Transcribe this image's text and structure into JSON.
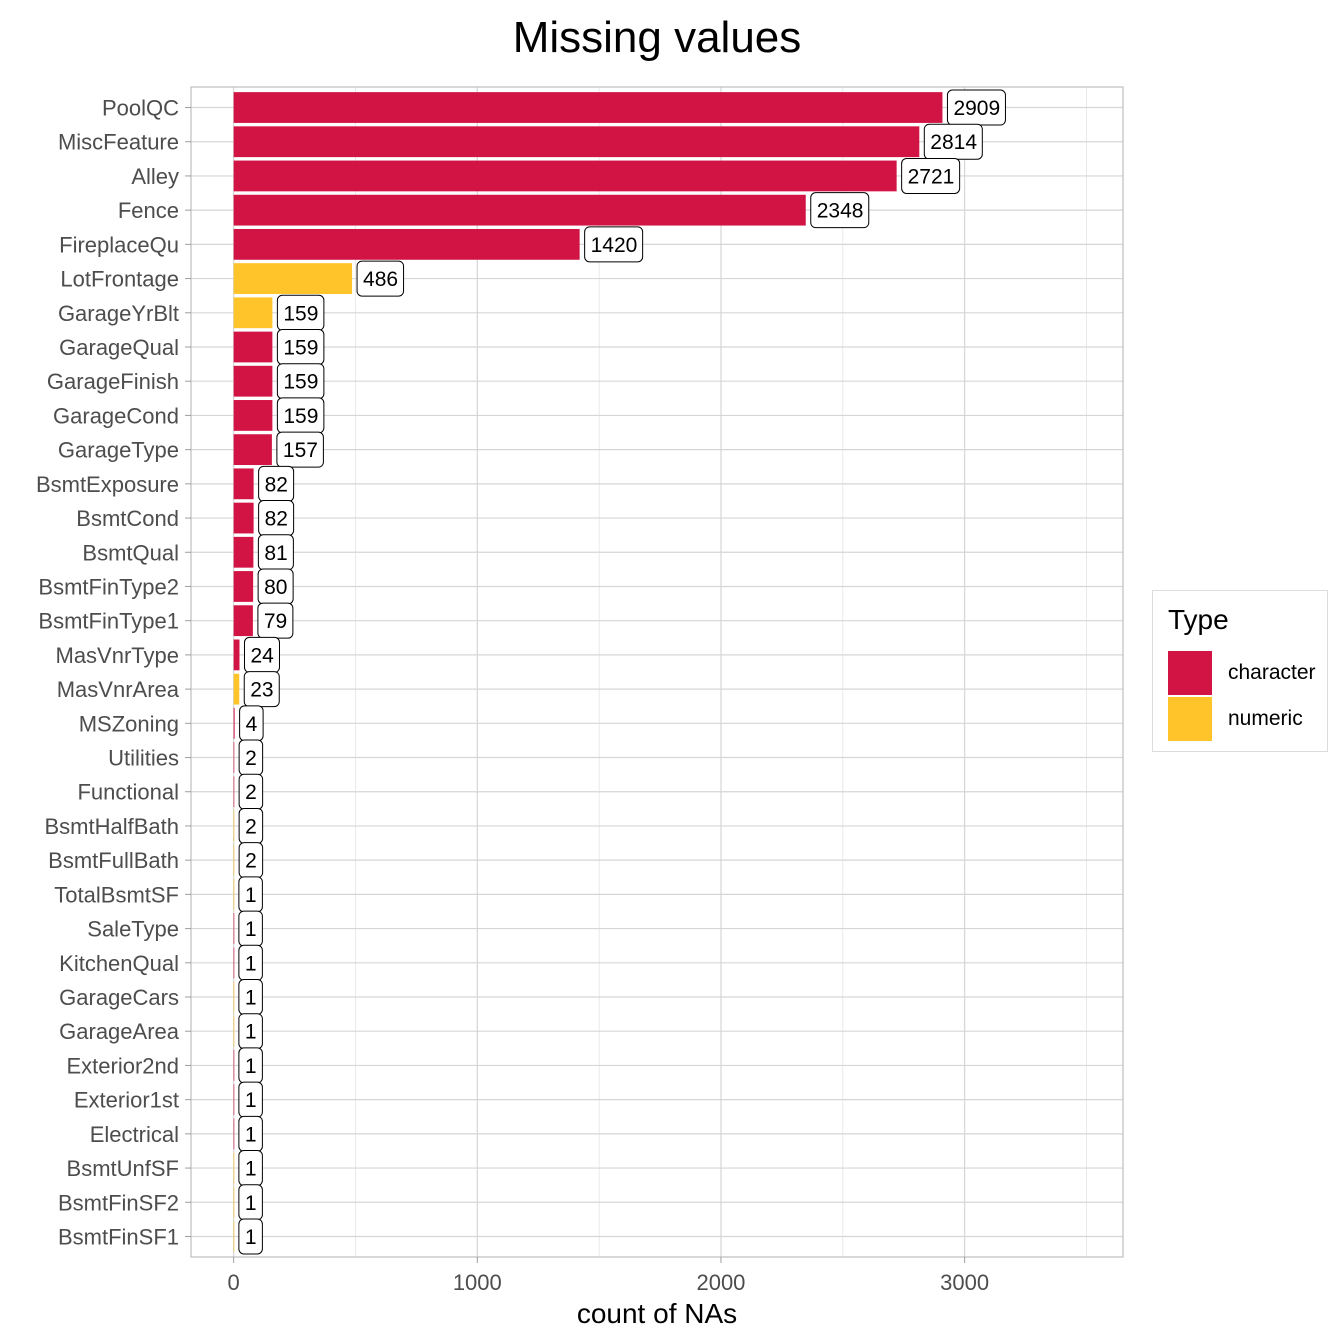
{
  "chart_data": {
    "type": "bar",
    "orientation": "horizontal",
    "title": "Missing values",
    "xlabel": "count of NAs",
    "ylabel": "",
    "xlim": [
      -175,
      3650
    ],
    "xticks": [
      0,
      1000,
      2000,
      3000
    ],
    "grid": true,
    "legend": {
      "title": "Type",
      "placement": "right",
      "entries": [
        {
          "name": "character",
          "color": "#d21445"
        },
        {
          "name": "numeric",
          "color": "#ffc429"
        }
      ]
    },
    "categories": [
      "PoolQC",
      "MiscFeature",
      "Alley",
      "Fence",
      "FireplaceQu",
      "LotFrontage",
      "GarageYrBlt",
      "GarageQual",
      "GarageFinish",
      "GarageCond",
      "GarageType",
      "BsmtExposure",
      "BsmtCond",
      "BsmtQual",
      "BsmtFinType2",
      "BsmtFinType1",
      "MasVnrType",
      "MasVnrArea",
      "MSZoning",
      "Utilities",
      "Functional",
      "BsmtHalfBath",
      "BsmtFullBath",
      "TotalBsmtSF",
      "SaleType",
      "KitchenQual",
      "GarageCars",
      "GarageArea",
      "Exterior2nd",
      "Exterior1st",
      "Electrical",
      "BsmtUnfSF",
      "BsmtFinSF2",
      "BsmtFinSF1"
    ],
    "values": [
      2909,
      2814,
      2721,
      2348,
      1420,
      486,
      159,
      159,
      159,
      159,
      157,
      82,
      82,
      81,
      80,
      79,
      24,
      23,
      4,
      2,
      2,
      2,
      2,
      1,
      1,
      1,
      1,
      1,
      1,
      1,
      1,
      1,
      1,
      1
    ],
    "types": [
      "character",
      "character",
      "character",
      "character",
      "character",
      "numeric",
      "numeric",
      "character",
      "character",
      "character",
      "character",
      "character",
      "character",
      "character",
      "character",
      "character",
      "character",
      "numeric",
      "character",
      "character",
      "character",
      "numeric",
      "numeric",
      "numeric",
      "character",
      "character",
      "numeric",
      "numeric",
      "character",
      "character",
      "character",
      "numeric",
      "numeric",
      "numeric"
    ],
    "data_labels": [
      "2909",
      "2814",
      "2721",
      "2348",
      "1420",
      "486",
      "159",
      "159",
      "159",
      "159",
      "157",
      "82",
      "82",
      "81",
      "80",
      "79",
      "24",
      "23",
      "4",
      "2",
      "2",
      "2",
      "2",
      "1",
      "1",
      "1",
      "1",
      "1",
      "1",
      "1",
      "1",
      "1",
      "1",
      "1"
    ]
  }
}
